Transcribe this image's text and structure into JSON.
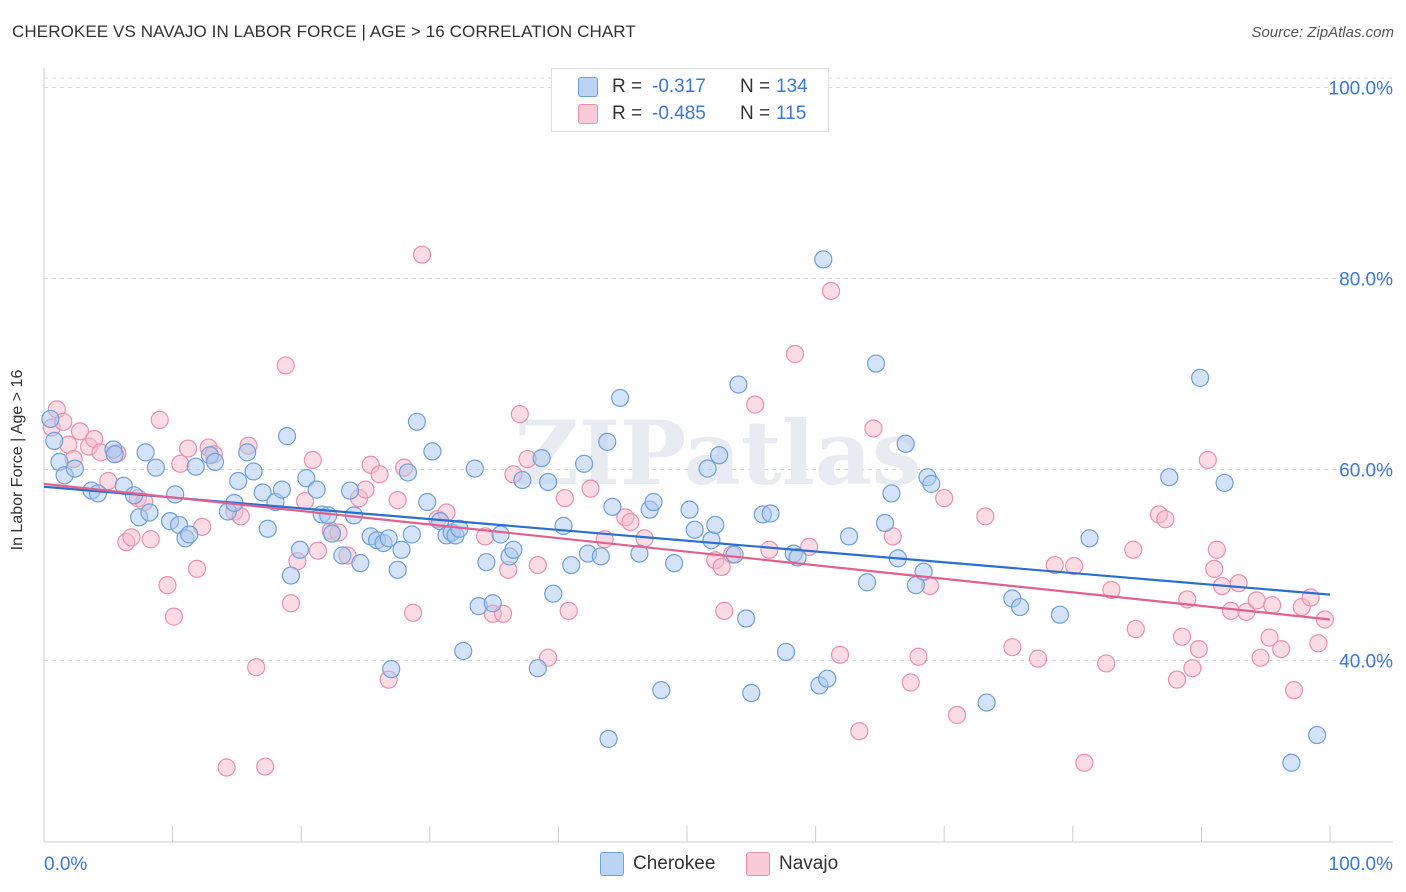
{
  "title": "CHEROKEE VS NAVAJO IN LABOR FORCE | AGE > 16 CORRELATION CHART",
  "source": "Source: ZipAtlas.com",
  "watermark": "ZIPatlas",
  "legend": {
    "rows": [
      {
        "r_label": "R =",
        "r_value": "-0.317",
        "n_label": "N =",
        "n_value": "134"
      },
      {
        "r_label": "R =",
        "r_value": "-0.485",
        "n_label": "N =",
        "n_value": "115"
      }
    ]
  },
  "bottom_legend": [
    "Cherokee",
    "Navajo"
  ],
  "colors": {
    "cherokee_fill": "#a9c8f0",
    "cherokee_stroke": "#6fa0dc",
    "cherokee_line": "#2a6fd0",
    "navajo_fill": "#f7b9cc",
    "navajo_stroke": "#ec8fae",
    "navajo_line": "#e0618f",
    "tick_label": "#3b78d8",
    "grid": "#d9d9d9"
  },
  "chart_data": {
    "type": "scatter",
    "title": "CHEROKEE VS NAVAJO IN LABOR FORCE | AGE > 16 CORRELATION CHART",
    "xlabel": "",
    "ylabel": "In Labor Force | Age > 16",
    "xlim": [
      0,
      100
    ],
    "ylim": [
      21,
      101
    ],
    "y_ticks": [
      40,
      60,
      80,
      100
    ],
    "y_tick_labels": [
      "40.0%",
      "60.0%",
      "80.0%",
      "100.0%"
    ],
    "x_tick_labels": [
      "0.0%",
      "100.0%"
    ],
    "grid": "horizontal dashed",
    "legend_position": "top-center",
    "series": [
      {
        "name": "Cherokee",
        "trend": {
          "x": [
            0,
            100
          ],
          "y": [
            58.2,
            46.9
          ]
        },
        "points": [
          [
            0.5,
            65.3
          ],
          [
            0.8,
            63.0
          ],
          [
            1.2,
            60.8
          ],
          [
            1.6,
            59.4
          ],
          [
            2.4,
            60.1
          ],
          [
            3.7,
            57.8
          ],
          [
            4.2,
            57.5
          ],
          [
            5.4,
            62.1
          ],
          [
            5.5,
            61.6
          ],
          [
            6.2,
            58.3
          ],
          [
            7.0,
            57.3
          ],
          [
            7.4,
            55.0
          ],
          [
            7.9,
            61.8
          ],
          [
            8.2,
            55.5
          ],
          [
            8.7,
            60.2
          ],
          [
            9.8,
            54.6
          ],
          [
            10.2,
            57.4
          ],
          [
            10.5,
            54.2
          ],
          [
            11.0,
            52.8
          ],
          [
            11.3,
            53.2
          ],
          [
            11.8,
            60.3
          ],
          [
            12.9,
            61.5
          ],
          [
            13.3,
            60.8
          ],
          [
            14.3,
            55.6
          ],
          [
            14.8,
            56.5
          ],
          [
            15.1,
            58.8
          ],
          [
            15.8,
            61.8
          ],
          [
            16.3,
            59.8
          ],
          [
            17.0,
            57.6
          ],
          [
            17.4,
            53.8
          ],
          [
            18.0,
            56.6
          ],
          [
            18.5,
            57.9
          ],
          [
            18.9,
            63.5
          ],
          [
            19.2,
            48.9
          ],
          [
            19.9,
            51.6
          ],
          [
            20.4,
            59.1
          ],
          [
            21.2,
            57.9
          ],
          [
            21.6,
            55.3
          ],
          [
            22.1,
            55.2
          ],
          [
            22.4,
            53.3
          ],
          [
            23.2,
            51.0
          ],
          [
            23.8,
            57.8
          ],
          [
            24.1,
            55.2
          ],
          [
            24.6,
            50.2
          ],
          [
            25.4,
            53.0
          ],
          [
            25.9,
            52.6
          ],
          [
            26.4,
            52.3
          ],
          [
            26.8,
            52.8
          ],
          [
            27.0,
            39.1
          ],
          [
            27.5,
            49.5
          ],
          [
            27.8,
            51.6
          ],
          [
            28.3,
            59.7
          ],
          [
            28.6,
            53.2
          ],
          [
            29.0,
            65.0
          ],
          [
            29.8,
            56.6
          ],
          [
            30.2,
            61.9
          ],
          [
            30.8,
            54.6
          ],
          [
            31.3,
            53.1
          ],
          [
            31.7,
            53.4
          ],
          [
            32.0,
            53.1
          ],
          [
            32.3,
            53.8
          ],
          [
            32.6,
            41.0
          ],
          [
            33.5,
            60.1
          ],
          [
            33.8,
            45.7
          ],
          [
            34.4,
            50.3
          ],
          [
            34.9,
            46.0
          ],
          [
            35.5,
            53.2
          ],
          [
            36.2,
            50.9
          ],
          [
            36.5,
            51.6
          ],
          [
            37.2,
            58.9
          ],
          [
            38.4,
            39.2
          ],
          [
            38.7,
            61.2
          ],
          [
            39.2,
            58.7
          ],
          [
            39.6,
            47.0
          ],
          [
            40.4,
            54.1
          ],
          [
            41.0,
            50.0
          ],
          [
            42.0,
            60.6
          ],
          [
            42.3,
            51.2
          ],
          [
            43.3,
            50.9
          ],
          [
            43.8,
            62.9
          ],
          [
            43.9,
            31.8
          ],
          [
            44.2,
            56.1
          ],
          [
            44.8,
            67.5
          ],
          [
            46.3,
            51.2
          ],
          [
            47.1,
            55.8
          ],
          [
            47.4,
            56.6
          ],
          [
            48.0,
            36.9
          ],
          [
            49.0,
            50.2
          ],
          [
            50.2,
            55.8
          ],
          [
            50.6,
            53.7
          ],
          [
            51.6,
            60.1
          ],
          [
            51.9,
            52.6
          ],
          [
            52.2,
            54.2
          ],
          [
            52.5,
            61.5
          ],
          [
            53.7,
            51.1
          ],
          [
            54.0,
            68.9
          ],
          [
            54.6,
            44.4
          ],
          [
            55.0,
            36.6
          ],
          [
            55.9,
            55.3
          ],
          [
            56.5,
            55.4
          ],
          [
            57.7,
            40.9
          ],
          [
            58.3,
            51.2
          ],
          [
            58.6,
            50.8
          ],
          [
            60.3,
            37.4
          ],
          [
            60.6,
            82.0
          ],
          [
            60.9,
            38.1
          ],
          [
            62.6,
            53.0
          ],
          [
            64.0,
            48.2
          ],
          [
            64.7,
            71.1
          ],
          [
            65.4,
            54.4
          ],
          [
            65.9,
            57.5
          ],
          [
            66.4,
            50.7
          ],
          [
            67.0,
            62.7
          ],
          [
            67.8,
            47.9
          ],
          [
            68.4,
            49.3
          ],
          [
            68.7,
            59.2
          ],
          [
            69.0,
            58.5
          ],
          [
            73.3,
            35.6
          ],
          [
            75.3,
            46.5
          ],
          [
            75.9,
            45.6
          ],
          [
            79.0,
            44.8
          ],
          [
            81.3,
            52.8
          ],
          [
            87.5,
            59.2
          ],
          [
            89.9,
            69.6
          ],
          [
            91.8,
            58.6
          ],
          [
            97.0,
            29.3
          ],
          [
            99.0,
            32.2
          ]
        ]
      },
      {
        "name": "Navajo",
        "trend": {
          "x": [
            0,
            100
          ],
          "y": [
            58.5,
            44.3
          ]
        },
        "points": [
          [
            0.6,
            64.4
          ],
          [
            1.0,
            66.3
          ],
          [
            1.5,
            65.0
          ],
          [
            1.9,
            62.6
          ],
          [
            2.3,
            61.1
          ],
          [
            2.8,
            64.0
          ],
          [
            3.5,
            62.4
          ],
          [
            3.9,
            63.2
          ],
          [
            4.4,
            61.8
          ],
          [
            5.0,
            58.8
          ],
          [
            5.7,
            61.7
          ],
          [
            6.4,
            52.4
          ],
          [
            6.8,
            52.9
          ],
          [
            7.3,
            57.0
          ],
          [
            7.8,
            56.6
          ],
          [
            8.3,
            52.7
          ],
          [
            9.0,
            65.2
          ],
          [
            9.6,
            47.9
          ],
          [
            10.1,
            44.6
          ],
          [
            10.6,
            60.6
          ],
          [
            11.2,
            62.2
          ],
          [
            11.9,
            49.6
          ],
          [
            12.3,
            54.0
          ],
          [
            12.8,
            62.3
          ],
          [
            13.2,
            61.6
          ],
          [
            14.2,
            28.8
          ],
          [
            14.8,
            55.6
          ],
          [
            15.3,
            55.1
          ],
          [
            15.9,
            62.5
          ],
          [
            16.5,
            39.3
          ],
          [
            17.2,
            28.9
          ],
          [
            18.8,
            70.9
          ],
          [
            19.2,
            46.0
          ],
          [
            19.7,
            50.4
          ],
          [
            20.3,
            56.7
          ],
          [
            20.9,
            61.0
          ],
          [
            21.3,
            51.5
          ],
          [
            22.3,
            53.6
          ],
          [
            22.9,
            53.4
          ],
          [
            23.6,
            51.0
          ],
          [
            24.5,
            57.0
          ],
          [
            25.0,
            57.9
          ],
          [
            25.4,
            60.5
          ],
          [
            26.1,
            59.5
          ],
          [
            26.8,
            38.0
          ],
          [
            27.5,
            56.8
          ],
          [
            28.0,
            60.2
          ],
          [
            28.7,
            45.0
          ],
          [
            29.4,
            82.5
          ],
          [
            30.6,
            54.8
          ],
          [
            31.3,
            55.5
          ],
          [
            34.3,
            53.0
          ],
          [
            34.9,
            44.9
          ],
          [
            35.7,
            44.9
          ],
          [
            36.1,
            49.5
          ],
          [
            36.5,
            59.5
          ],
          [
            37.0,
            65.8
          ],
          [
            37.6,
            61.1
          ],
          [
            38.4,
            50.0
          ],
          [
            39.2,
            40.3
          ],
          [
            40.5,
            57.0
          ],
          [
            40.8,
            45.2
          ],
          [
            42.5,
            58.0
          ],
          [
            43.6,
            52.7
          ],
          [
            45.2,
            55.0
          ],
          [
            45.6,
            54.5
          ],
          [
            46.7,
            52.8
          ],
          [
            52.2,
            50.5
          ],
          [
            52.7,
            49.8
          ],
          [
            52.9,
            45.2
          ],
          [
            53.5,
            51.1
          ],
          [
            55.3,
            66.8
          ],
          [
            56.4,
            51.6
          ],
          [
            58.4,
            72.1
          ],
          [
            59.5,
            51.9
          ],
          [
            61.2,
            78.7
          ],
          [
            61.9,
            40.6
          ],
          [
            63.4,
            32.6
          ],
          [
            64.5,
            64.3
          ],
          [
            66.0,
            53.0
          ],
          [
            67.4,
            37.7
          ],
          [
            68.0,
            40.4
          ],
          [
            68.9,
            47.8
          ],
          [
            70.0,
            57.0
          ],
          [
            71.0,
            34.3
          ],
          [
            73.2,
            55.1
          ],
          [
            75.3,
            41.4
          ],
          [
            77.3,
            40.2
          ],
          [
            78.6,
            50.0
          ],
          [
            80.1,
            49.9
          ],
          [
            80.9,
            29.3
          ],
          [
            82.6,
            39.7
          ],
          [
            83.0,
            47.4
          ],
          [
            84.7,
            51.6
          ],
          [
            84.9,
            43.3
          ],
          [
            86.7,
            55.3
          ],
          [
            87.2,
            54.8
          ],
          [
            88.1,
            38.0
          ],
          [
            88.5,
            42.5
          ],
          [
            88.9,
            46.4
          ],
          [
            89.3,
            39.2
          ],
          [
            89.8,
            41.2
          ],
          [
            90.5,
            61.0
          ],
          [
            91.0,
            49.6
          ],
          [
            91.2,
            51.6
          ],
          [
            91.6,
            47.8
          ],
          [
            92.3,
            45.2
          ],
          [
            92.9,
            48.1
          ],
          [
            93.5,
            45.1
          ],
          [
            94.3,
            46.3
          ],
          [
            94.6,
            40.3
          ],
          [
            95.3,
            42.4
          ],
          [
            95.5,
            45.8
          ],
          [
            96.2,
            41.2
          ],
          [
            97.2,
            36.9
          ],
          [
            97.8,
            45.6
          ],
          [
            98.5,
            46.6
          ],
          [
            99.1,
            41.8
          ],
          [
            99.6,
            44.3
          ]
        ]
      }
    ]
  }
}
